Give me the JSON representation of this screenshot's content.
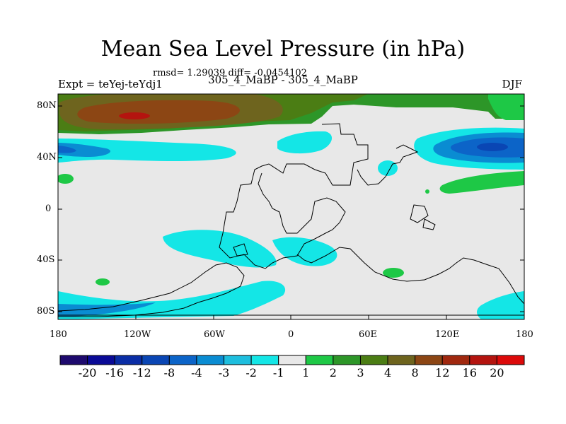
{
  "title": "Mean Sea Level Pressure (in hPa)",
  "stats": "rmsd= 1.29039 diff= -0.0454102",
  "expt": "Expt = teYej-teYdj1",
  "subtitle": "305_4_MaBP - 305_4_MaBP",
  "season": "DJF",
  "lat_ticks": [
    "80N",
    "40N",
    "0",
    "40S",
    "80S"
  ],
  "lon_ticks": [
    "180",
    "120W",
    "60W",
    "0",
    "60E",
    "120E",
    "180"
  ],
  "colorbar": {
    "labels": [
      "-20",
      "-16",
      "-12",
      "-8",
      "-4",
      "-3",
      "-2",
      "-1",
      "1",
      "2",
      "3",
      "4",
      "8",
      "12",
      "16",
      "20"
    ],
    "colors": [
      "#1e0a6e",
      "#0a0a96",
      "#0a2da5",
      "#0a46b4",
      "#0c64c8",
      "#0a8cd2",
      "#1ebede",
      "#14e6e6",
      "#e8e8e8",
      "#1ec846",
      "#2d9628",
      "#4b7d14",
      "#6e641e",
      "#8c4614",
      "#a0280f",
      "#b4140f",
      "#dc0a0a"
    ]
  }
}
